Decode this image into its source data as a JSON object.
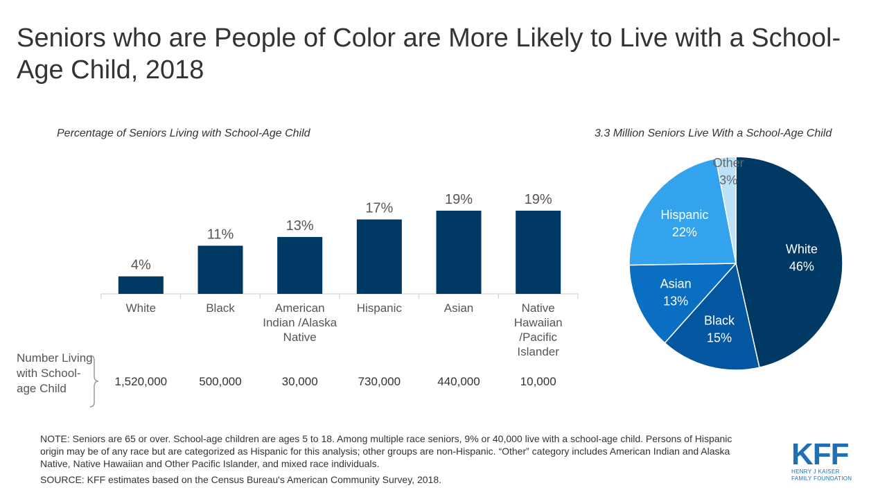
{
  "title": "Seniors who are People of Color are More Likely to Live with a School-Age Child, 2018",
  "chart_data": [
    {
      "type": "bar",
      "title": "Percentage of Seniors Living with School-Age Child",
      "categories": [
        "White",
        "Black",
        "American Indian /Alaska Native",
        "Hispanic",
        "Asian",
        "Native Hawaiian /Pacific Islander"
      ],
      "values": [
        4,
        11,
        13,
        17,
        19,
        19
      ],
      "value_labels": [
        "4%",
        "11%",
        "13%",
        "17%",
        "19%",
        "19%"
      ],
      "ylim": [
        0,
        25
      ],
      "grid": false,
      "color": "#003a64",
      "counts_label": "Number Living with School-age Child",
      "counts": [
        "1,520,000",
        "500,000",
        "30,000",
        "730,000",
        "440,000",
        "10,000"
      ]
    },
    {
      "type": "pie",
      "title": "3.3 Million Seniors Live With a School-Age Child",
      "slices": [
        {
          "label": "White",
          "value": 46,
          "value_label": "46%",
          "color": "#003a64"
        },
        {
          "label": "Black",
          "value": 15,
          "value_label": "15%",
          "color": "#0456a0"
        },
        {
          "label": "Asian",
          "value": 13,
          "value_label": "13%",
          "color": "#0a6fc2"
        },
        {
          "label": "Hispanic",
          "value": 22,
          "value_label": "22%",
          "color": "#33a3ee"
        },
        {
          "label": "Other",
          "value": 3,
          "value_label": "3%",
          "color": "#bde2f8"
        }
      ]
    }
  ],
  "note": "NOTE:  Seniors are 65 or over.  School-age children are ages 5 to 18.  Among multiple race seniors, 9% or 40,000 live with a school-age child.  Persons of Hispanic origin may be of any race but are categorized as Hispanic for this analysis; other groups are non-Hispanic. “Other” category includes American Indian and Alaska Native, Native Hawaiian and Other Pacific Islander, and mixed race individuals.",
  "source": "SOURCE: KFF estimates based on the Census Bureau's American Community Survey, 2018.",
  "logo": {
    "mark": "KFF",
    "line1": "HENRY J KAISER",
    "line2": "FAMILY FOUNDATION"
  }
}
